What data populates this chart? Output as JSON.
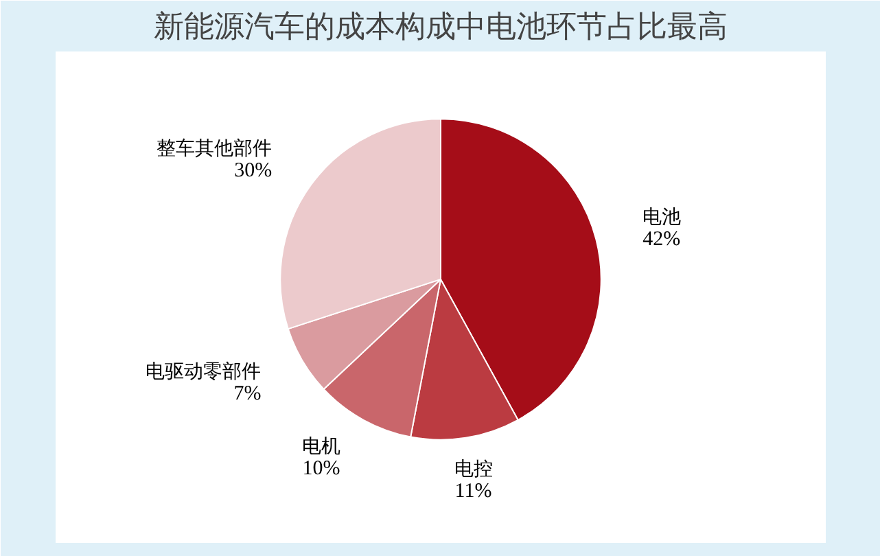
{
  "chart_data": {
    "type": "pie",
    "title": "新能源汽车的成本构成中电池环节占比最高",
    "categories": [
      "电池",
      "电控",
      "电机",
      "电驱动零部件",
      "整车其他部件"
    ],
    "values": [
      42,
      11,
      10,
      7,
      30
    ],
    "colors": [
      "#a50d18",
      "#bb3b41",
      "#c9666b",
      "#da9b9f",
      "#eccacc"
    ],
    "value_labels": [
      "42%",
      "11%",
      "10%",
      "7%",
      "30%"
    ]
  }
}
